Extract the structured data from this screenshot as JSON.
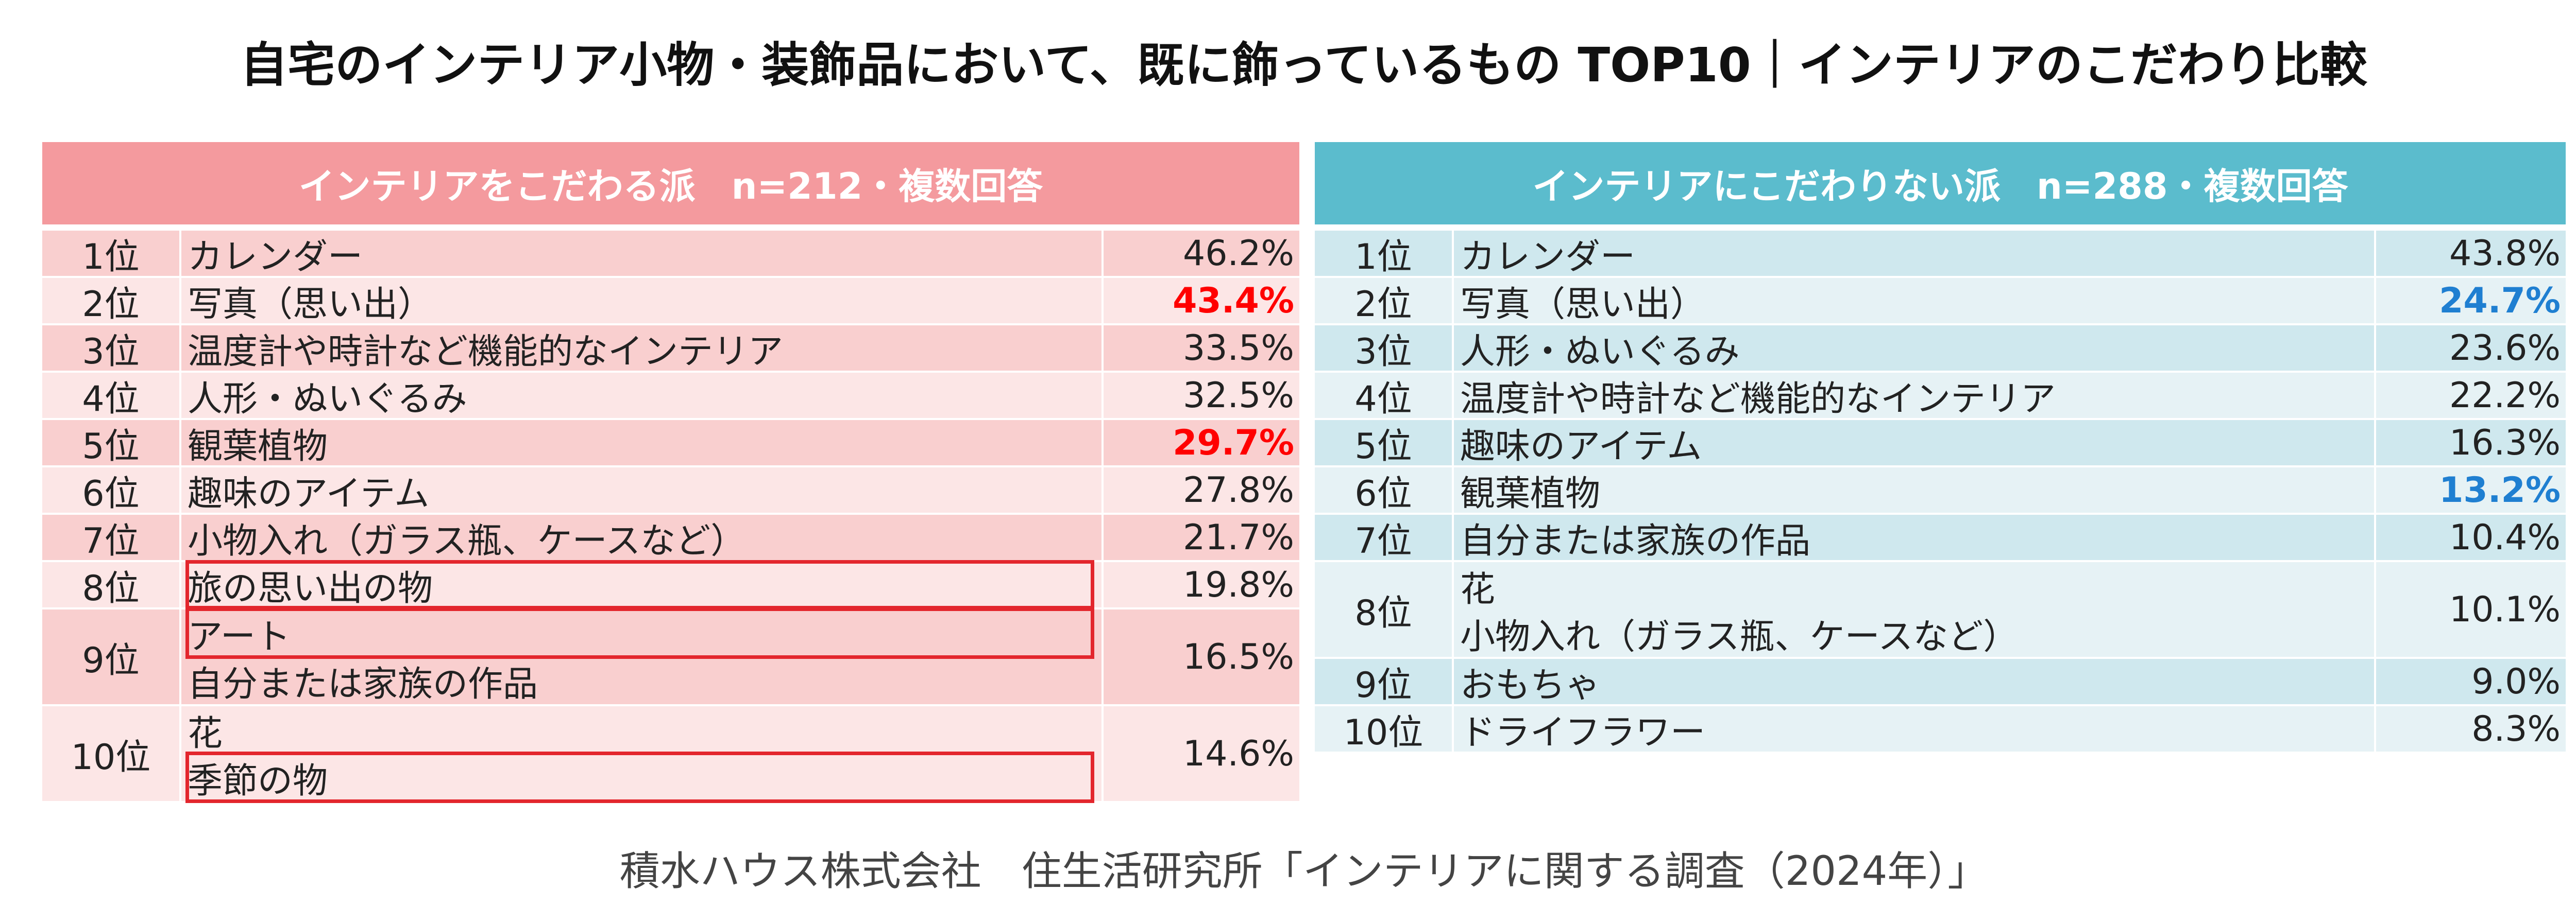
{
  "title": "自宅のインテリア小物・装飾品において、既に飾っているもの TOP10｜インテリアのこだわり比較",
  "source": "積水ハウス株式会社　住生活研究所「インテリアに関する調査（2024年）」",
  "colors": {
    "left_header": "#f49a9e",
    "right_header": "#5bbccd",
    "highlight_red": "#ff0000",
    "highlight_blue": "#1f7fd1",
    "box_red": "#e3262d"
  },
  "chart_data": [
    {
      "type": "table",
      "title": "インテリアをこだわる派　n=212・複数回答",
      "rows": [
        {
          "rank": "1位",
          "items": [
            "カレンダー"
          ],
          "value": "46.2%",
          "highlight": false
        },
        {
          "rank": "2位",
          "items": [
            "写真（思い出）"
          ],
          "value": "43.4%",
          "highlight": true
        },
        {
          "rank": "3位",
          "items": [
            "温度計や時計など機能的なインテリア"
          ],
          "value": "33.5%",
          "highlight": false
        },
        {
          "rank": "4位",
          "items": [
            "人形・ぬいぐるみ"
          ],
          "value": "32.5%",
          "highlight": false
        },
        {
          "rank": "5位",
          "items": [
            "観葉植物"
          ],
          "value": "29.7%",
          "highlight": true
        },
        {
          "rank": "6位",
          "items": [
            "趣味のアイテム"
          ],
          "value": "27.8%",
          "highlight": false
        },
        {
          "rank": "7位",
          "items": [
            "小物入れ（ガラス瓶、ケースなど）"
          ],
          "value": "21.7%",
          "highlight": false
        },
        {
          "rank": "8位",
          "items": [
            "旅の思い出の物"
          ],
          "value": "19.8%",
          "highlight": false,
          "boxed": [
            0
          ]
        },
        {
          "rank": "9位",
          "items": [
            "アート",
            "自分または家族の作品"
          ],
          "value": "16.5%",
          "highlight": false,
          "boxed": [
            0
          ]
        },
        {
          "rank": "10位",
          "items": [
            "花",
            "季節の物"
          ],
          "value": "14.6%",
          "highlight": false,
          "boxed": [
            1
          ]
        }
      ]
    },
    {
      "type": "table",
      "title": "インテリアにこだわりない派　n=288・複数回答",
      "rows": [
        {
          "rank": "1位",
          "items": [
            "カレンダー"
          ],
          "value": "43.8%",
          "highlight": false
        },
        {
          "rank": "2位",
          "items": [
            "写真（思い出）"
          ],
          "value": "24.7%",
          "highlight": true
        },
        {
          "rank": "3位",
          "items": [
            "人形・ぬいぐるみ"
          ],
          "value": "23.6%",
          "highlight": false
        },
        {
          "rank": "4位",
          "items": [
            "温度計や時計など機能的なインテリア"
          ],
          "value": "22.2%",
          "highlight": false
        },
        {
          "rank": "5位",
          "items": [
            "趣味のアイテム"
          ],
          "value": "16.3%",
          "highlight": false
        },
        {
          "rank": "6位",
          "items": [
            "観葉植物"
          ],
          "value": "13.2%",
          "highlight": true
        },
        {
          "rank": "7位",
          "items": [
            "自分または家族の作品"
          ],
          "value": "10.4%",
          "highlight": false
        },
        {
          "rank": "8位",
          "items": [
            "花",
            "小物入れ（ガラス瓶、ケースなど）"
          ],
          "value": "10.1%",
          "highlight": false
        },
        {
          "rank": "9位",
          "items": [
            "おもちゃ"
          ],
          "value": "9.0%",
          "highlight": false
        },
        {
          "rank": "10位",
          "items": [
            "ドライフラワー"
          ],
          "value": "8.3%",
          "highlight": false
        }
      ]
    }
  ]
}
